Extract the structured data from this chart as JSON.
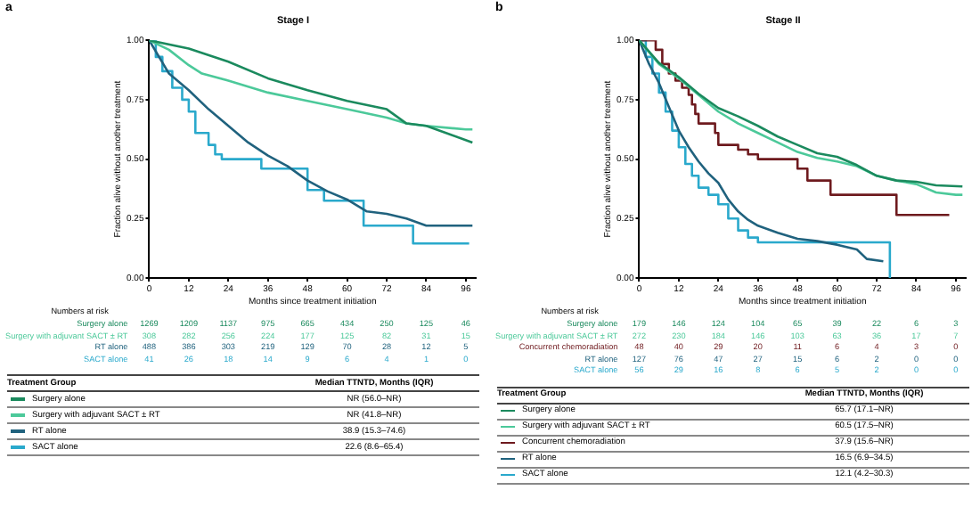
{
  "chart_data": [
    {
      "type": "line",
      "title": "Stage I",
      "xlabel": "Months since treatment initiation",
      "ylabel": "Fraction alive without another treatment",
      "xlim": [
        0,
        99
      ],
      "xticks": [
        0,
        12,
        24,
        36,
        48,
        60,
        72,
        84,
        96
      ],
      "ylim": [
        0,
        1
      ],
      "yticks": [
        {
          "value": 0,
          "label": "0.00"
        },
        {
          "value": 0.25,
          "label": "0.25"
        },
        {
          "value": 0.5,
          "label": "0.50"
        },
        {
          "value": 0.75,
          "label": "0.75"
        },
        {
          "value": 1,
          "label": "1.00"
        }
      ],
      "legend": "bottom",
      "series": [
        {
          "name": "Surgery alone",
          "color": "#1b8a5e",
          "x": [
            0,
            12,
            24,
            36,
            48,
            60,
            72,
            78,
            84,
            90,
            98
          ],
          "values": [
            1,
            0.965,
            0.91,
            0.84,
            0.79,
            0.745,
            0.71,
            0.65,
            0.64,
            0.61,
            0.57
          ]
        },
        {
          "name": "Surgery with adjuvant SACT ± RT",
          "color": "#4cc99a",
          "x": [
            0,
            6,
            12,
            16,
            24,
            36,
            48,
            60,
            72,
            78,
            84,
            96,
            98
          ],
          "values": [
            1,
            0.96,
            0.895,
            0.86,
            0.83,
            0.78,
            0.745,
            0.71,
            0.675,
            0.65,
            0.64,
            0.625,
            0.625
          ]
        },
        {
          "name": "RT alone",
          "color": "#20627e",
          "x": [
            0,
            6,
            12,
            18,
            24,
            30,
            36,
            42,
            48,
            54,
            60,
            66,
            72,
            78,
            84,
            98
          ],
          "values": [
            1,
            0.86,
            0.79,
            0.71,
            0.64,
            0.57,
            0.515,
            0.47,
            0.41,
            0.365,
            0.33,
            0.28,
            0.27,
            0.25,
            0.22,
            0.22
          ]
        },
        {
          "name": "SACT alone",
          "type": "step",
          "color": "#2aa9cc",
          "x": [
            0,
            2,
            4,
            7,
            10,
            12,
            14,
            18,
            20,
            22,
            34,
            48,
            53,
            65,
            80,
            97
          ],
          "values": [
            1,
            0.93,
            0.87,
            0.8,
            0.75,
            0.7,
            0.61,
            0.56,
            0.52,
            0.5,
            0.46,
            0.37,
            0.325,
            0.22,
            0.145,
            0.145
          ]
        }
      ],
      "annotations": [
        "a",
        "Numbers at risk",
        "1269\t1209\t1137\t975\t665\t434\t250\t125\t46",
        "308\t282\t256\t224\t177\t125\t82\t31\t15",
        "488\t386\t303\t219\t129\t70\t28\t12\t5",
        "41\t26\t18\t14\t9\t6\t4\t1\t0",
        "Treatment Group",
        "Median TTNTD, Months (IQR)",
        "NR (56.0–NR)",
        "NR (41.8–NR)",
        "38.9 (15.3–74.6)",
        "22.6 (8.6–65.4)"
      ]
    },
    {
      "type": "line",
      "title": "Stage II",
      "xlabel": "Months since treatment initiation",
      "ylabel": "Fraction alive without another treatment",
      "xlim": [
        0,
        99
      ],
      "xticks": [
        0,
        12,
        24,
        36,
        48,
        60,
        72,
        84,
        96
      ],
      "ylim": [
        0,
        1
      ],
      "yticks": [
        {
          "value": 0,
          "label": "0.00"
        },
        {
          "value": 0.25,
          "label": "0.25"
        },
        {
          "value": 0.5,
          "label": "0.50"
        },
        {
          "value": 0.75,
          "label": "0.75"
        },
        {
          "value": 1,
          "label": "1.00"
        }
      ],
      "legend": "bottom",
      "series": [
        {
          "name": "Surgery alone",
          "color": "#1b8a5e",
          "x": [
            0,
            6,
            12,
            18,
            24,
            30,
            36,
            42,
            48,
            54,
            60,
            66,
            72,
            78,
            84,
            90,
            98
          ],
          "values": [
            1,
            0.905,
            0.845,
            0.775,
            0.715,
            0.68,
            0.64,
            0.595,
            0.56,
            0.525,
            0.51,
            0.475,
            0.43,
            0.41,
            0.405,
            0.39,
            0.385
          ]
        },
        {
          "name": "Surgery with adjuvant SACT ± RT",
          "color": "#4cc99a",
          "x": [
            0,
            6,
            12,
            18,
            24,
            30,
            36,
            42,
            48,
            54,
            60,
            66,
            72,
            78,
            84,
            90,
            96,
            98
          ],
          "values": [
            1,
            0.9,
            0.84,
            0.77,
            0.7,
            0.65,
            0.61,
            0.57,
            0.53,
            0.505,
            0.49,
            0.47,
            0.43,
            0.41,
            0.395,
            0.36,
            0.35,
            0.35
          ]
        },
        {
          "name": "Concurrent chemoradiation",
          "type": "step",
          "color": "#6e1a1e",
          "x": [
            0,
            5,
            7,
            9,
            11,
            13,
            15,
            16,
            17,
            18,
            23,
            24,
            30,
            33,
            36,
            48,
            51,
            58,
            78,
            94
          ],
          "values": [
            1,
            0.96,
            0.9,
            0.86,
            0.83,
            0.8,
            0.77,
            0.73,
            0.69,
            0.65,
            0.61,
            0.56,
            0.54,
            0.52,
            0.5,
            0.46,
            0.41,
            0.35,
            0.265,
            0.265
          ]
        },
        {
          "name": "RT alone",
          "color": "#20627e",
          "x": [
            0,
            3,
            6,
            9,
            12,
            15,
            18,
            21,
            24,
            27,
            30,
            33,
            36,
            42,
            48,
            54,
            60,
            66,
            69,
            74
          ],
          "values": [
            1,
            0.9,
            0.82,
            0.72,
            0.62,
            0.55,
            0.49,
            0.44,
            0.4,
            0.33,
            0.28,
            0.245,
            0.22,
            0.19,
            0.165,
            0.155,
            0.14,
            0.12,
            0.08,
            0.07
          ]
        },
        {
          "name": "SACT alone",
          "type": "step",
          "color": "#2aa9cc",
          "x": [
            0,
            2,
            4,
            6,
            8,
            10,
            12,
            14,
            16,
            18,
            21,
            24,
            27,
            30,
            33,
            36,
            75,
            76
          ],
          "values": [
            1,
            0.93,
            0.86,
            0.78,
            0.7,
            0.62,
            0.55,
            0.48,
            0.43,
            0.38,
            0.35,
            0.31,
            0.25,
            0.2,
            0.17,
            0.15,
            0.15,
            0
          ]
        }
      ],
      "annotations": [
        "b",
        "Numbers at risk",
        "179\t146\t124\t104\t65\t39\t22\t6\t3",
        "272\t230\t184\t146\t103\t63\t36\t17\t7",
        "48\t40\t29\t20\t11\t6\t4\t3\t0",
        "127\t76\t47\t27\t15\t6\t2\t0\t0",
        "56\t29\t16\t8\t6\t5\t2\t0\t0",
        "Treatment Group",
        "Median TTNTD, Months (IQR)",
        "65.7 (17.1–NR)",
        "60.5 (17.5–NR)",
        "37.9 (15.6–NR)",
        "16.5 (6.9–34.5)",
        "12.1 (4.2–30.3)"
      ]
    }
  ]
}
